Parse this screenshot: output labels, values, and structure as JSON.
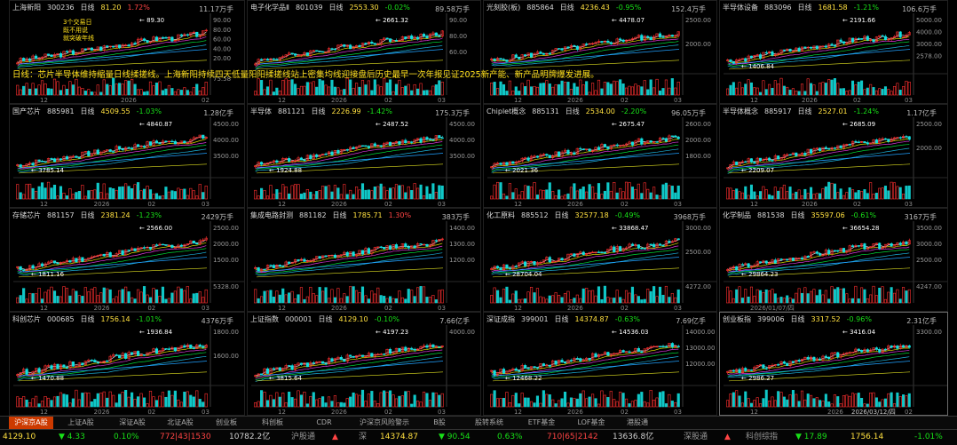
{
  "banner_text": "日线：芯片半导体维持缩量日线揉搓线。上海新阳持续四天低量阳阳揉搓线站上密集均线迎接盘后历史最早一次年报见证2025新产能、新产品明牌爆发进展。",
  "panels": [
    {
      "name": "上海新阳",
      "code": "300236",
      "period": "日线",
      "price": "81.20",
      "change": "1.72%",
      "volume": "11.17万手",
      "high_label": "89.30",
      "low_label": "",
      "ticks": [
        "90.00",
        "80.00",
        "60.00",
        "40.00",
        "20.00"
      ],
      "vol_ticks": [
        "75.58",
        ""
      ],
      "x_ticks": [
        "12",
        "2026",
        "02"
      ],
      "trend": "up-mid",
      "notes": [
        "3个交易日",
        "既不用说",
        "就突破年线"
      ]
    },
    {
      "name": "电子化学品Ⅱ",
      "code": "801039",
      "period": "日线",
      "price": "2553.30",
      "change": "-0.02%",
      "volume": "89.58万手",
      "high_label": "2661.32",
      "low_label": "",
      "ticks": [
        "90.00",
        "80.00",
        "60.00"
      ],
      "vol_ticks": [
        ""
      ],
      "x_ticks": [
        "12",
        "2026",
        "02",
        "03"
      ],
      "trend": "up",
      "notes": []
    },
    {
      "name": "光刻胶(板)",
      "code": "885864",
      "period": "日线",
      "price": "4236.43",
      "change": "-0.95%",
      "volume": "152.4万手",
      "high_label": "4478.07",
      "low_label": "",
      "ticks": [
        "2500.00",
        "2000.00"
      ],
      "vol_ticks": [
        ""
      ],
      "x_ticks": [
        "12",
        "2026",
        "02",
        "03"
      ],
      "trend": "up",
      "notes": []
    },
    {
      "name": "半导体设备",
      "code": "883096",
      "period": "日线",
      "price": "1681.58",
      "change": "-1.21%",
      "volume": "106.6万手",
      "high_label": "2191.66",
      "low_label": "1406.84",
      "ticks": [
        "5000.00",
        "4000.00",
        "3000.00",
        "2578.00"
      ],
      "vol_ticks": [
        ""
      ],
      "x_ticks": [
        "12",
        "2026",
        "02",
        "03"
      ],
      "trend": "up",
      "notes": []
    },
    {
      "name": "国产芯片",
      "code": "885981",
      "period": "日线",
      "price": "4509.55",
      "change": "-1.03%",
      "volume": "1.28亿手",
      "high_label": "4840.87",
      "low_label": "3785.14",
      "ticks": [
        "4500.00",
        "4000.00",
        "3500.00"
      ],
      "vol_ticks": [
        ""
      ],
      "x_ticks": [
        "12",
        "2026",
        "02",
        "03"
      ],
      "trend": "up",
      "notes": []
    },
    {
      "name": "半导体",
      "code": "881121",
      "period": "日线",
      "price": "2226.99",
      "change": "-1.42%",
      "volume": "175.3万手",
      "high_label": "2487.52",
      "low_label": "1924.88",
      "ticks": [
        "4500.00",
        "4000.00",
        "3500.00"
      ],
      "vol_ticks": [
        ""
      ],
      "x_ticks": [
        "12",
        "2026",
        "02",
        "03"
      ],
      "trend": "up",
      "notes": []
    },
    {
      "name": "Chiplet概念",
      "code": "885131",
      "period": "日线",
      "price": "2534.00",
      "change": "-2.20%",
      "volume": "96.05万手",
      "high_label": "2675.47",
      "low_label": "2021.36",
      "ticks": [
        "2600.00",
        "2000.00",
        "1800.00"
      ],
      "vol_ticks": [
        ""
      ],
      "x_ticks": [
        "12",
        "2026",
        "02",
        "03"
      ],
      "trend": "up",
      "notes": []
    },
    {
      "name": "半导体概念",
      "code": "885917",
      "period": "日线",
      "price": "2527.01",
      "change": "-1.24%",
      "volume": "1.17亿手",
      "high_label": "2685.09",
      "low_label": "2209.07",
      "ticks": [
        "2500.00",
        "2000.00"
      ],
      "vol_ticks": [
        ""
      ],
      "x_ticks": [
        "12",
        "2026",
        "02",
        "03"
      ],
      "trend": "up",
      "notes": []
    },
    {
      "name": "存储芯片",
      "code": "881157",
      "period": "日线",
      "price": "2381.24",
      "change": "-1.23%",
      "volume": "2429万手",
      "high_label": "2566.00",
      "low_label": "1811.16",
      "ticks": [
        "2500.00",
        "2000.00",
        "1500.00"
      ],
      "vol_ticks": [
        "5328.00",
        ""
      ],
      "x_ticks": [
        "12",
        "2026",
        "02",
        "03"
      ],
      "trend": "up",
      "notes": []
    },
    {
      "name": "集成电路封测",
      "code": "881182",
      "period": "日线",
      "price": "1785.71",
      "change": "1.30%",
      "volume": "383万手",
      "high_label": "",
      "low_label": "",
      "ticks": [
        "1400.00",
        "1300.00",
        "1200.00"
      ],
      "vol_ticks": [
        ""
      ],
      "x_ticks": [
        "12",
        "2026",
        "02",
        "03"
      ],
      "trend": "up",
      "notes": []
    },
    {
      "name": "化工原料",
      "code": "885512",
      "period": "日线",
      "price": "32577.18",
      "change": "-0.49%",
      "volume": "3968万手",
      "high_label": "33868.47",
      "low_label": "28704.04",
      "ticks": [
        "3000.00",
        "2500.00"
      ],
      "vol_ticks": [
        "4272.00",
        ""
      ],
      "x_ticks": [
        "12",
        "2026",
        "02",
        "03"
      ],
      "trend": "up",
      "notes": []
    },
    {
      "name": "化学制品",
      "code": "881538",
      "period": "日线",
      "price": "35597.06",
      "change": "-0.61%",
      "volume": "3167万手",
      "high_label": "36654.28",
      "low_label": "29864.23",
      "ticks": [
        "3500.00",
        "3000.00",
        "2500.00"
      ],
      "vol_ticks": [
        "4247.00",
        ""
      ],
      "x_ticks": [
        "2026/01/07/四"
      ],
      "trend": "up",
      "notes": []
    },
    {
      "name": "科创芯片",
      "code": "000685",
      "period": "日线",
      "price": "1756.14",
      "change": "-1.01%",
      "volume": "4376万手",
      "high_label": "1936.84",
      "low_label": "1470.88",
      "ticks": [
        "1800.00",
        "1600.00"
      ],
      "vol_ticks": [
        ""
      ],
      "x_ticks": [
        "12",
        "2026",
        "02",
        "03"
      ],
      "trend": "up",
      "notes": []
    },
    {
      "name": "上证指数",
      "code": "000001",
      "period": "日线",
      "price": "4129.10",
      "change": "-0.10%",
      "volume": "7.66亿手",
      "high_label": "4197.23",
      "low_label": "3815.64",
      "ticks": [
        "4000.00"
      ],
      "vol_ticks": [
        ""
      ],
      "x_ticks": [
        "12",
        "2026",
        "02",
        "03"
      ],
      "trend": "up",
      "notes": []
    },
    {
      "name": "深证成指",
      "code": "399001",
      "period": "日线",
      "price": "14374.87",
      "change": "-0.63%",
      "volume": "7.69亿手",
      "high_label": "14536.03",
      "low_label": "12468.22",
      "ticks": [
        "14000.00",
        "13000.00",
        "12000.00"
      ],
      "vol_ticks": [
        ""
      ],
      "x_ticks": [
        "12",
        "2026",
        "02",
        "03"
      ],
      "trend": "up",
      "notes": []
    },
    {
      "name": "创业板指",
      "code": "399006",
      "period": "日线",
      "price": "3317.52",
      "change": "-0.96%",
      "volume": "2.31亿手",
      "high_label": "3416.04",
      "low_label": "2986.27",
      "ticks": [
        "3300.00"
      ],
      "vol_ticks": [
        ""
      ],
      "x_ticks": [
        "12",
        "2026",
        "02"
      ],
      "trend": "up",
      "notes": [],
      "date_tag": "2026/03/12/四"
    }
  ],
  "tabs": [
    "沪深京A股",
    "上证A股",
    "深证A股",
    "北证A股",
    "创业板",
    "科创板",
    "CDR",
    "沪深京风险警示",
    "B股",
    "股转系统",
    "ETF基金",
    "LOF基金",
    "港股通"
  ],
  "status": {
    "sh_index": "4129.10",
    "sh_chg": "▼ 4.33",
    "sh_pct": "0.10%",
    "sh_ud": "772|43|1530",
    "sh_amt": "10782.2亿",
    "mid_label": "沪股通",
    "mid_label_arrow": "▲",
    "sz_label": "深",
    "sz_index": "14374.87",
    "sz_chg": "▼ 90.54",
    "sz_pct": "0.63%",
    "sz_ud": "710|65|2142",
    "sz_amt": "13636.8亿",
    "szt_label": "深股通",
    "szt_chg": "▲",
    "kc_label": "科创综指",
    "kc_chg": "▼ 17.89",
    "kc_price": "1756.14",
    "kc_pct": "-1.01%"
  }
}
